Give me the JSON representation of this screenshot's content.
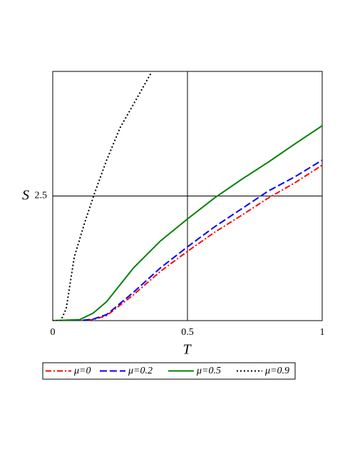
{
  "chart_data": {
    "type": "line",
    "xlabel": "T",
    "ylabel": "S",
    "xlim": [
      0,
      1
    ],
    "ylim": [
      0,
      5
    ],
    "xticks": [
      0,
      0.5,
      1
    ],
    "yticks": [
      2.5
    ],
    "grid": true,
    "series": [
      {
        "name": "μ=0",
        "color": "#ff0000",
        "dash": "8 3 2 3",
        "x": [
          0,
          0.1,
          0.15,
          0.2,
          0.3,
          0.4,
          0.5,
          0.6,
          0.7,
          0.8,
          0.9,
          1
        ],
        "values": [
          0,
          0,
          0.02,
          0.1,
          0.52,
          0.99,
          1.39,
          1.77,
          2.11,
          2.46,
          2.77,
          3.12
        ]
      },
      {
        "name": "μ=0.2",
        "color": "#0000ff",
        "dash": "10 4",
        "x": [
          0,
          0.1,
          0.15,
          0.2,
          0.3,
          0.4,
          0.5,
          0.6,
          0.7,
          0.8,
          0.9,
          1
        ],
        "values": [
          0,
          0,
          0.03,
          0.12,
          0.57,
          1.06,
          1.48,
          1.88,
          2.24,
          2.6,
          2.89,
          3.22
        ]
      },
      {
        "name": "μ=0.5",
        "color": "#008000",
        "dash": "",
        "x": [
          0,
          0.1,
          0.15,
          0.2,
          0.3,
          0.4,
          0.5,
          0.6,
          0.7,
          0.8,
          0.9,
          1
        ],
        "values": [
          0,
          0.02,
          0.15,
          0.38,
          1.06,
          1.6,
          2.04,
          2.46,
          2.83,
          3.18,
          3.55,
          3.91
        ]
      },
      {
        "name": "μ=0.9",
        "color": "#000000",
        "dash": "2 3",
        "x": [
          0,
          0.03,
          0.05,
          0.08,
          0.12,
          0.156,
          0.2,
          0.25,
          0.31,
          0.365
        ],
        "values": [
          0,
          0,
          0.24,
          1.28,
          1.99,
          2.57,
          3.22,
          3.87,
          4.44,
          4.97
        ]
      }
    ]
  }
}
